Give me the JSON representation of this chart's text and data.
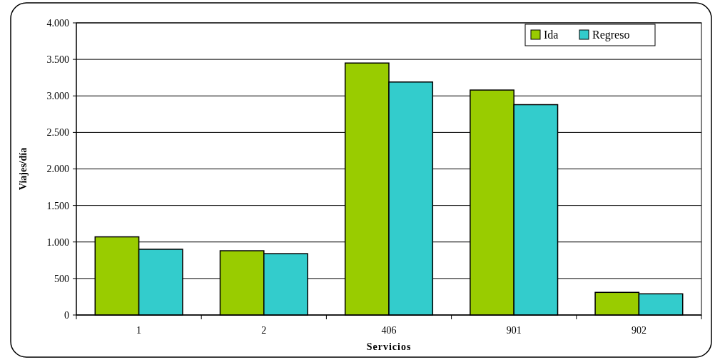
{
  "chart_data": {
    "type": "bar",
    "xlabel": "Servicios",
    "ylabel": "Viajes/día",
    "categories": [
      "1",
      "2",
      "406",
      "901",
      "902"
    ],
    "series": [
      {
        "name": "Ida",
        "color": "#99cc00",
        "values": [
          1070,
          880,
          3450,
          3080,
          310
        ]
      },
      {
        "name": "Regreso",
        "color": "#33cccc",
        "values": [
          900,
          840,
          3190,
          2880,
          290
        ]
      }
    ],
    "ylim": [
      0,
      4000
    ],
    "yticks": [
      {
        "value": 0,
        "label": "0"
      },
      {
        "value": 500,
        "label": "500"
      },
      {
        "value": 1000,
        "label": "1.000"
      },
      {
        "value": 1500,
        "label": "1.500"
      },
      {
        "value": 2000,
        "label": "2.000"
      },
      {
        "value": 2500,
        "label": "2.500"
      },
      {
        "value": 3000,
        "label": "3.000"
      },
      {
        "value": 3500,
        "label": "3.500"
      },
      {
        "value": 4000,
        "label": "4.000"
      }
    ],
    "grid": "y",
    "legend": "top right"
  }
}
